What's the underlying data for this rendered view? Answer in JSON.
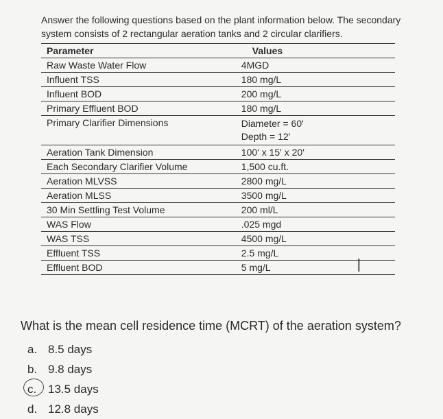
{
  "intro": "Answer the following questions based on the plant information below. The secondary system consists of 2 rectangular aeration tanks and 2 circular clarifiers.",
  "headers": {
    "param": "Parameter",
    "value": "Values"
  },
  "rows": [
    {
      "param": "Raw Waste Water Flow",
      "value": "4MGD"
    },
    {
      "param": "Influent TSS",
      "value": "180 mg/L"
    },
    {
      "param": "Influent BOD",
      "value": "200 mg/L"
    },
    {
      "param": "Primary Effluent BOD",
      "value": "180 mg/L"
    },
    {
      "param": "Primary Clarifier Dimensions",
      "value": "Diameter = 60'\nDepth = 12'"
    },
    {
      "param": "Aeration Tank Dimension",
      "value": "100' x 15' x 20'"
    },
    {
      "param": "Each Secondary Clarifier Volume",
      "value": "1,500 cu.ft."
    },
    {
      "param": "Aeration MLVSS",
      "value": "2800 mg/L"
    },
    {
      "param": "Aeration MLSS",
      "value": "3500 mg/L"
    },
    {
      "param": "30 Min Settling Test Volume",
      "value": "200 ml/L"
    },
    {
      "param": "WAS Flow",
      "value": ".025 mgd"
    },
    {
      "param": "WAS TSS",
      "value": "4500 mg/L"
    },
    {
      "param": "Effluent TSS",
      "value": "2.5 mg/L"
    },
    {
      "param": "Effluent BOD",
      "value": "5 mg/L"
    }
  ],
  "question": "What is the mean cell residence time (MCRT) of the aeration system?",
  "options": [
    {
      "letter": "a.",
      "text": "8.5 days",
      "circled": false
    },
    {
      "letter": "b.",
      "text": "9.8 days",
      "circled": false
    },
    {
      "letter": "c.",
      "text": "13.5 days",
      "circled": true
    },
    {
      "letter": "d.",
      "text": "12.8 days",
      "circled": false
    }
  ],
  "colors": {
    "background": "#f5f5f3",
    "text": "#2a2a2a",
    "border": "#333333"
  }
}
